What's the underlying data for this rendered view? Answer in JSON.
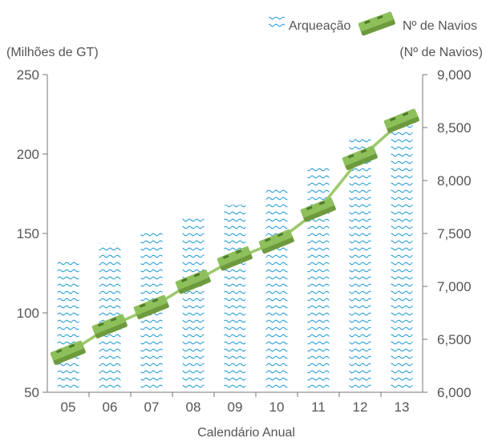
{
  "chart_data": {
    "type": "bar",
    "xlabel": "Calendário Anual",
    "categories": [
      "05",
      "06",
      "07",
      "08",
      "09",
      "10",
      "11",
      "12",
      "13"
    ],
    "series": [
      {
        "name": "Arqueação",
        "type": "bar",
        "axis": "left",
        "values": [
          134,
          144,
          151,
          161,
          168,
          179,
          193,
          210,
          222
        ]
      },
      {
        "name": "Nº de Navios",
        "type": "line",
        "axis": "right",
        "values": [
          6370,
          6620,
          6800,
          7040,
          7260,
          7420,
          7720,
          8210,
          8560
        ]
      }
    ],
    "y_left": {
      "label": "(Milhões de GT)",
      "ylim": [
        50,
        250
      ],
      "ticks": [
        "50",
        "100",
        "150",
        "200",
        "250"
      ]
    },
    "y_right": {
      "label": "(Nº de Navios)",
      "ylim": [
        6000,
        9000
      ],
      "ticks": [
        "6,000",
        "6,500",
        "7,000",
        "7,500",
        "8,000",
        "8,500",
        "9,000"
      ]
    },
    "legend": {
      "position": "top-right",
      "items": [
        "Arqueação",
        "Nº de Navios"
      ]
    },
    "grid": false,
    "colors": {
      "bar_wave": "#3aa5d8",
      "line": "#9cc96b",
      "marker": "#8dc05b",
      "marker_dark": "#6e9a3e",
      "axis": "#777777"
    }
  }
}
